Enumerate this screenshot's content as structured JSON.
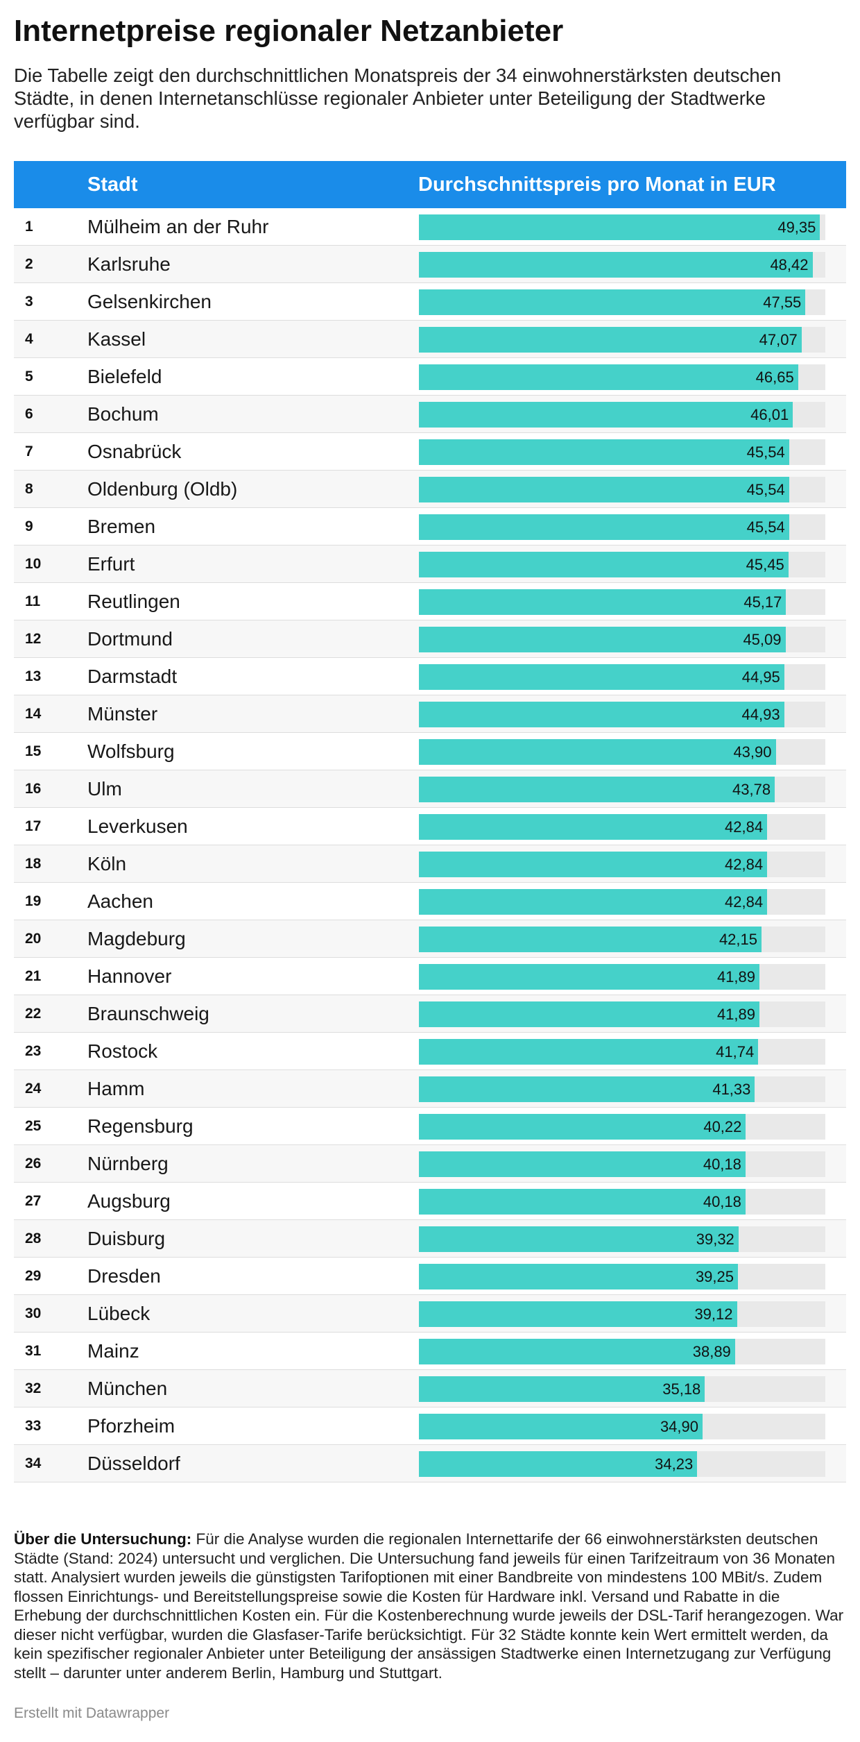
{
  "title": "Internetpreise regionaler Netzanbieter",
  "subtitle": "Die Tabelle zeigt den durchschnittlichen Monatspreis der 34 einwohnerstärksten deutschen Städte, in denen Internetanschlüsse regionaler Anbieter unter Beteiligung der Stadtwerke verfügbar sind.",
  "columns": {
    "city": "Stadt",
    "price": "Durchschnittspreis pro Monat in EUR"
  },
  "colors": {
    "header": "#1a8ce9",
    "bar": "#45d1c9",
    "track": "#e9e9e9"
  },
  "note": {
    "label": "Über die Untersuchung:",
    "text": " Für die Analyse wurden die regionalen Internettarife der 66 einwohnerstärksten deutschen Städte (Stand: 2024) untersucht und verglichen. Die Untersuchung fand jeweils für einen Tarifzeitraum von 36 Monaten statt. Analysiert wurden jeweils die günstigsten Tarifoptionen mit einer Bandbreite von mindestens 100 MBit/s. Zudem flossen Einrichtungs- und Bereitstellungspreise sowie die Kosten für Hardware inkl. Versand und Rabatte in die Erhebung der durchschnittlichen Kosten ein. Für die Kostenberechnung wurde jeweils der DSL-Tarif herangezogen. War dieser nicht verfügbar, wurden die Glasfaser-Tarife berücksichtigt. Für 32 Städte konnte kein Wert ermittelt werden, da kein spezifischer regionaler Anbieter unter Beteiligung der ansässigen Stadtwerke einen Internetzugang zur Verfügung stellt – darunter unter anderem Berlin, Hamburg und Stuttgart."
  },
  "credit": "Erstellt mit Datawrapper",
  "chart_data": {
    "type": "table",
    "title": "Internetpreise regionaler Netzanbieter",
    "xlabel": "Durchschnittspreis pro Monat in EUR",
    "ylabel": "Stadt",
    "max": 50,
    "rows": [
      {
        "rank": "1",
        "city": "Mülheim an der Ruhr",
        "value": 49.35,
        "label": "49,35"
      },
      {
        "rank": "2",
        "city": "Karlsruhe",
        "value": 48.42,
        "label": "48,42"
      },
      {
        "rank": "3",
        "city": "Gelsenkirchen",
        "value": 47.55,
        "label": "47,55"
      },
      {
        "rank": "4",
        "city": "Kassel",
        "value": 47.07,
        "label": "47,07"
      },
      {
        "rank": "5",
        "city": "Bielefeld",
        "value": 46.65,
        "label": "46,65"
      },
      {
        "rank": "6",
        "city": "Bochum",
        "value": 46.01,
        "label": "46,01"
      },
      {
        "rank": "7",
        "city": "Osnabrück",
        "value": 45.54,
        "label": "45,54"
      },
      {
        "rank": "8",
        "city": "Oldenburg (Oldb)",
        "value": 45.54,
        "label": "45,54"
      },
      {
        "rank": "9",
        "city": "Bremen",
        "value": 45.54,
        "label": "45,54"
      },
      {
        "rank": "10",
        "city": "Erfurt",
        "value": 45.45,
        "label": "45,45"
      },
      {
        "rank": "11",
        "city": "Reutlingen",
        "value": 45.17,
        "label": "45,17"
      },
      {
        "rank": "12",
        "city": "Dortmund",
        "value": 45.09,
        "label": "45,09"
      },
      {
        "rank": "13",
        "city": "Darmstadt",
        "value": 44.95,
        "label": "44,95"
      },
      {
        "rank": "14",
        "city": "Münster",
        "value": 44.93,
        "label": "44,93"
      },
      {
        "rank": "15",
        "city": "Wolfsburg",
        "value": 43.9,
        "label": "43,90"
      },
      {
        "rank": "16",
        "city": "Ulm",
        "value": 43.78,
        "label": "43,78"
      },
      {
        "rank": "17",
        "city": "Leverkusen",
        "value": 42.84,
        "label": "42,84"
      },
      {
        "rank": "18",
        "city": "Köln",
        "value": 42.84,
        "label": "42,84"
      },
      {
        "rank": "19",
        "city": "Aachen",
        "value": 42.84,
        "label": "42,84"
      },
      {
        "rank": "20",
        "city": "Magdeburg",
        "value": 42.15,
        "label": "42,15"
      },
      {
        "rank": "21",
        "city": "Hannover",
        "value": 41.89,
        "label": "41,89"
      },
      {
        "rank": "22",
        "city": "Braunschweig",
        "value": 41.89,
        "label": "41,89"
      },
      {
        "rank": "23",
        "city": "Rostock",
        "value": 41.74,
        "label": "41,74"
      },
      {
        "rank": "24",
        "city": "Hamm",
        "value": 41.33,
        "label": "41,33"
      },
      {
        "rank": "25",
        "city": "Regensburg",
        "value": 40.22,
        "label": "40,22"
      },
      {
        "rank": "26",
        "city": "Nürnberg",
        "value": 40.18,
        "label": "40,18"
      },
      {
        "rank": "27",
        "city": "Augsburg",
        "value": 40.18,
        "label": "40,18"
      },
      {
        "rank": "28",
        "city": "Duisburg",
        "value": 39.32,
        "label": "39,32"
      },
      {
        "rank": "29",
        "city": "Dresden",
        "value": 39.25,
        "label": "39,25"
      },
      {
        "rank": "30",
        "city": "Lübeck",
        "value": 39.12,
        "label": "39,12"
      },
      {
        "rank": "31",
        "city": "Mainz",
        "value": 38.89,
        "label": "38,89"
      },
      {
        "rank": "32",
        "city": "München",
        "value": 35.18,
        "label": "35,18"
      },
      {
        "rank": "33",
        "city": "Pforzheim",
        "value": 34.9,
        "label": "34,90"
      },
      {
        "rank": "34",
        "city": "Düsseldorf",
        "value": 34.23,
        "label": "34,23"
      }
    ]
  }
}
